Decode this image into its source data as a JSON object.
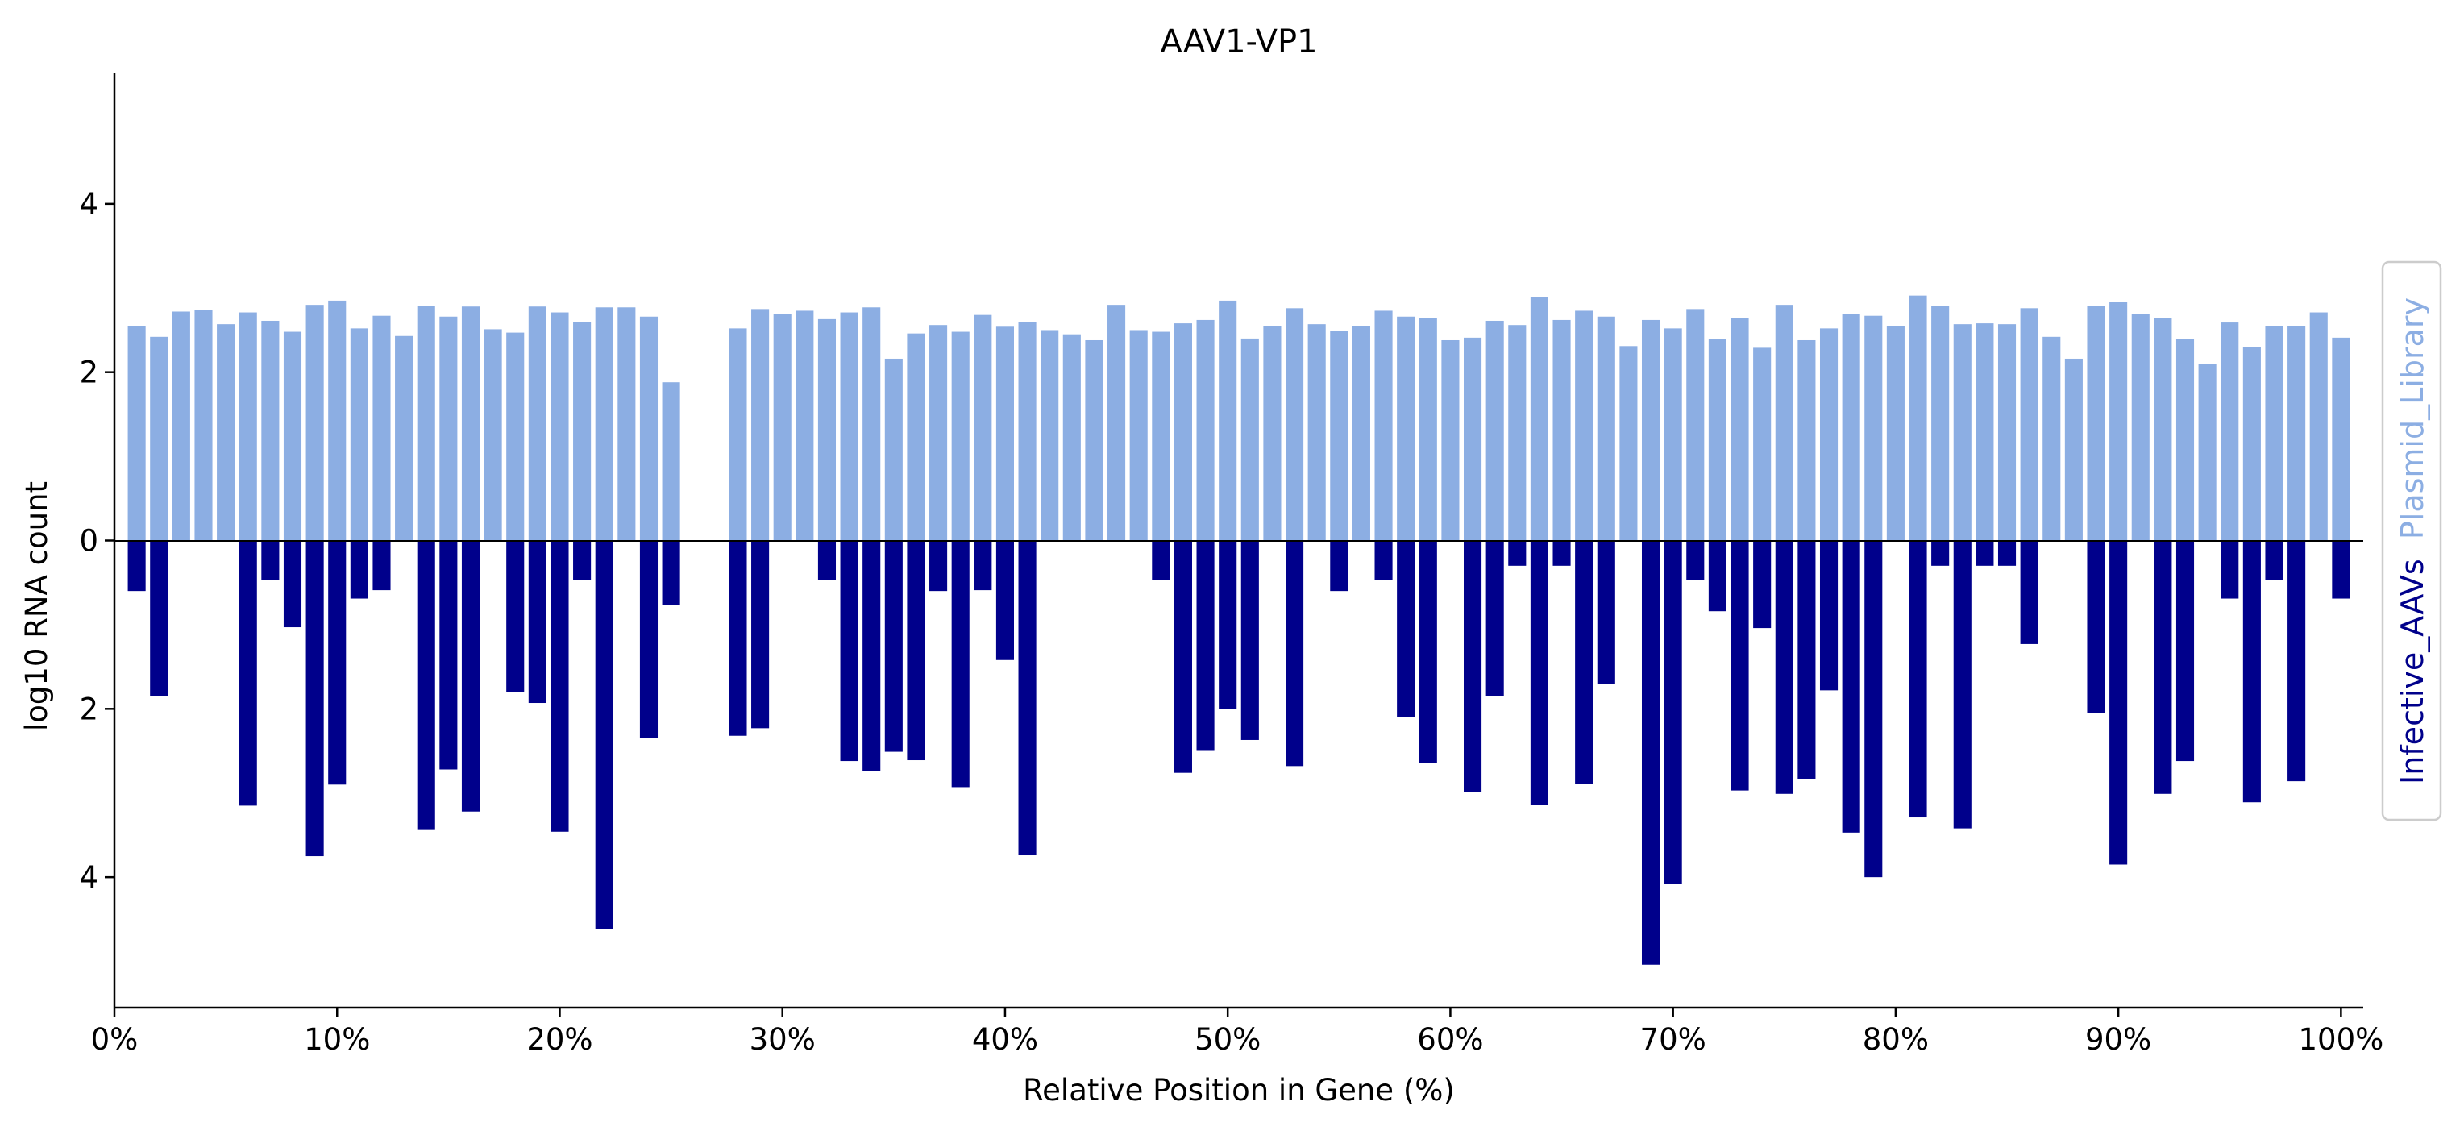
{
  "chart_data": {
    "type": "bar",
    "title": "AAV1-VP1",
    "xlabel": "Relative Position in Gene (%)",
    "ylabel": "log10 RNA count",
    "xlim": [
      0,
      101
    ],
    "ylim": [
      -5.55,
      5.55
    ],
    "grid": false,
    "x_ticks": [
      0,
      10,
      20,
      30,
      40,
      50,
      60,
      70,
      80,
      90,
      100
    ],
    "x_tick_labels": [
      "0%",
      "10%",
      "20%",
      "30%",
      "40%",
      "50%",
      "60%",
      "70%",
      "80%",
      "90%",
      "100%"
    ],
    "y_ticks": [
      -4,
      -2,
      0,
      2,
      4
    ],
    "y_tick_labels": [
      "4",
      "2",
      "0",
      "2",
      "4"
    ],
    "legend": {
      "placement": "right-vertical",
      "entries": [
        "Infective_AAVs",
        "Plasmid_Library"
      ]
    },
    "x": [
      1,
      2,
      3,
      4,
      5,
      6,
      7,
      8,
      9,
      10,
      11,
      12,
      13,
      14,
      15,
      16,
      17,
      18,
      19,
      20,
      21,
      22,
      23,
      24,
      25,
      26,
      27,
      28,
      29,
      30,
      31,
      32,
      33,
      34,
      35,
      36,
      37,
      38,
      39,
      40,
      41,
      42,
      43,
      44,
      45,
      46,
      47,
      48,
      49,
      50,
      51,
      52,
      53,
      54,
      55,
      56,
      57,
      58,
      59,
      60,
      61,
      62,
      63,
      64,
      65,
      66,
      67,
      68,
      69,
      70,
      71,
      72,
      73,
      74,
      75,
      76,
      77,
      78,
      79,
      80,
      81,
      82,
      83,
      84,
      85,
      86,
      87,
      88,
      89,
      90,
      91,
      92,
      93,
      94,
      95,
      96,
      97,
      98,
      99,
      100
    ],
    "series": [
      {
        "name": "Plasmid_Library",
        "color": "#8caee3",
        "values": [
          2.55,
          2.42,
          2.72,
          2.74,
          2.57,
          2.71,
          2.61,
          2.48,
          2.8,
          2.85,
          2.52,
          2.67,
          2.43,
          2.79,
          2.66,
          2.78,
          2.51,
          2.47,
          2.78,
          2.71,
          2.6,
          2.77,
          2.77,
          2.66,
          1.88,
          0,
          0,
          2.52,
          2.75,
          2.69,
          2.73,
          2.63,
          2.71,
          2.77,
          2.16,
          2.46,
          2.56,
          2.48,
          2.68,
          2.54,
          2.6,
          2.5,
          2.45,
          2.38,
          2.8,
          2.5,
          2.48,
          2.58,
          2.62,
          2.85,
          2.4,
          2.55,
          2.76,
          2.57,
          2.49,
          2.55,
          2.73,
          2.66,
          2.64,
          2.38,
          2.41,
          2.61,
          2.56,
          2.89,
          2.62,
          2.73,
          2.66,
          2.31,
          2.62,
          2.52,
          2.75,
          2.39,
          2.64,
          2.29,
          2.8,
          2.38,
          2.52,
          2.69,
          2.67,
          2.55,
          2.91,
          2.79,
          2.57,
          2.58,
          2.57,
          2.76,
          2.42,
          2.16,
          2.79,
          2.83,
          2.69,
          2.64,
          2.39,
          2.1,
          2.59,
          2.3,
          2.55,
          2.55,
          2.71,
          2.41
        ]
      },
      {
        "name": "Infective_AAVs",
        "color": "#00008b",
        "values": [
          0.6,
          1.85,
          0,
          0,
          0,
          3.15,
          0.47,
          1.03,
          3.75,
          2.9,
          0.69,
          0.59,
          0,
          3.43,
          2.72,
          3.22,
          0,
          1.8,
          1.93,
          3.46,
          0.47,
          4.62,
          0,
          2.35,
          0.77,
          0,
          0,
          2.32,
          2.23,
          0,
          0,
          0.47,
          2.62,
          2.74,
          2.51,
          2.61,
          0.6,
          2.93,
          0.59,
          1.42,
          3.74,
          0,
          0,
          0,
          0,
          0,
          0.47,
          2.76,
          2.49,
          2.0,
          2.37,
          0,
          2.68,
          0,
          0.6,
          0,
          0.47,
          2.1,
          2.64,
          0,
          2.99,
          1.85,
          0.3,
          3.14,
          0.3,
          2.89,
          1.7,
          0,
          5.04,
          4.08,
          0.47,
          0.84,
          2.97,
          1.04,
          3.01,
          2.83,
          1.78,
          3.47,
          4.0,
          0,
          3.29,
          0.3,
          3.42,
          0.3,
          0.3,
          1.23,
          0,
          0,
          2.05,
          3.85,
          0,
          3.01,
          2.62,
          0,
          0.69,
          3.11,
          0.47,
          2.86,
          0,
          0.69
        ]
      }
    ]
  }
}
